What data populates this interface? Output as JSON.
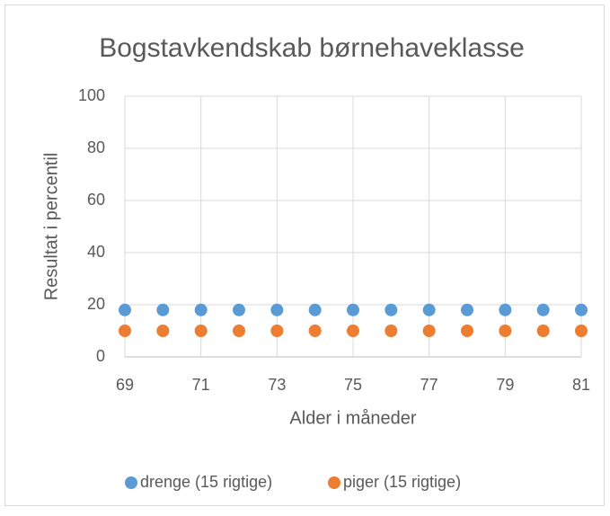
{
  "chart_data": {
    "type": "scatter",
    "title": "Bogstavkendskab børnehaveklasse",
    "x_label": "Alder i måneder",
    "y_label": "Resultat i percentil",
    "series": [
      {
        "name": "drenge (15 rigtige)",
        "color": "#5b9bd5",
        "x": [
          69,
          70,
          71,
          72,
          73,
          74,
          75,
          76,
          77,
          78,
          79,
          80,
          81
        ],
        "values": [
          18,
          18,
          18,
          18,
          18,
          18,
          18,
          18,
          18,
          18,
          18,
          18,
          18
        ]
      },
      {
        "name": "piger (15 rigtige)",
        "color": "#ed7d31",
        "x": [
          69,
          70,
          71,
          72,
          73,
          74,
          75,
          76,
          77,
          78,
          79,
          80,
          81
        ],
        "values": [
          10,
          10,
          10,
          10,
          10,
          10,
          10,
          10,
          10,
          10,
          10,
          10,
          10
        ]
      }
    ],
    "xlim": [
      69,
      81
    ],
    "xticks": [
      69,
      71,
      73,
      75,
      77,
      79,
      81
    ],
    "ylim": [
      0,
      100
    ],
    "yticks": [
      0,
      20,
      40,
      60,
      80,
      100
    ],
    "grid": true,
    "legend": "bottom"
  }
}
